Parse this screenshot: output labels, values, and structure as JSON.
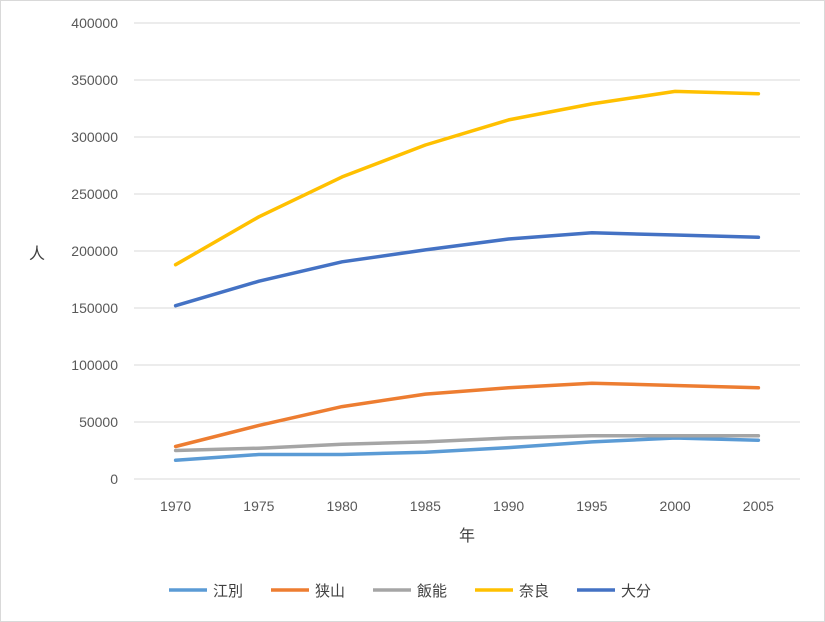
{
  "chart_data": {
    "type": "line",
    "xlabel": "年",
    "ylabel": "人",
    "x": [
      1970,
      1975,
      1980,
      1985,
      1990,
      1995,
      2000,
      2005
    ],
    "ylim": [
      0,
      400000
    ],
    "yticks": [
      0,
      50000,
      100000,
      150000,
      200000,
      250000,
      300000,
      350000,
      400000
    ],
    "grid": true,
    "legend_position": "bottom",
    "series": [
      {
        "name": "江別",
        "color": "#5B9BD5",
        "values": [
          16500,
          21500,
          21500,
          23500,
          27500,
          32500,
          36000,
          34000
        ]
      },
      {
        "name": "狭山",
        "color": "#ED7D31",
        "values": [
          28500,
          47000,
          63500,
          74500,
          80000,
          84000,
          82000,
          80000
        ]
      },
      {
        "name": "飯能",
        "color": "#A5A5A5",
        "values": [
          25000,
          27000,
          30500,
          32500,
          36000,
          38000,
          38000,
          38000
        ]
      },
      {
        "name": "奈良",
        "color": "#FFC000",
        "values": [
          188000,
          230000,
          265000,
          293000,
          315000,
          329000,
          340000,
          338000
        ]
      },
      {
        "name": "大分",
        "color": "#4472C4",
        "values": [
          152000,
          173500,
          190500,
          201000,
          210500,
          216000,
          214000,
          212000
        ]
      }
    ]
  }
}
